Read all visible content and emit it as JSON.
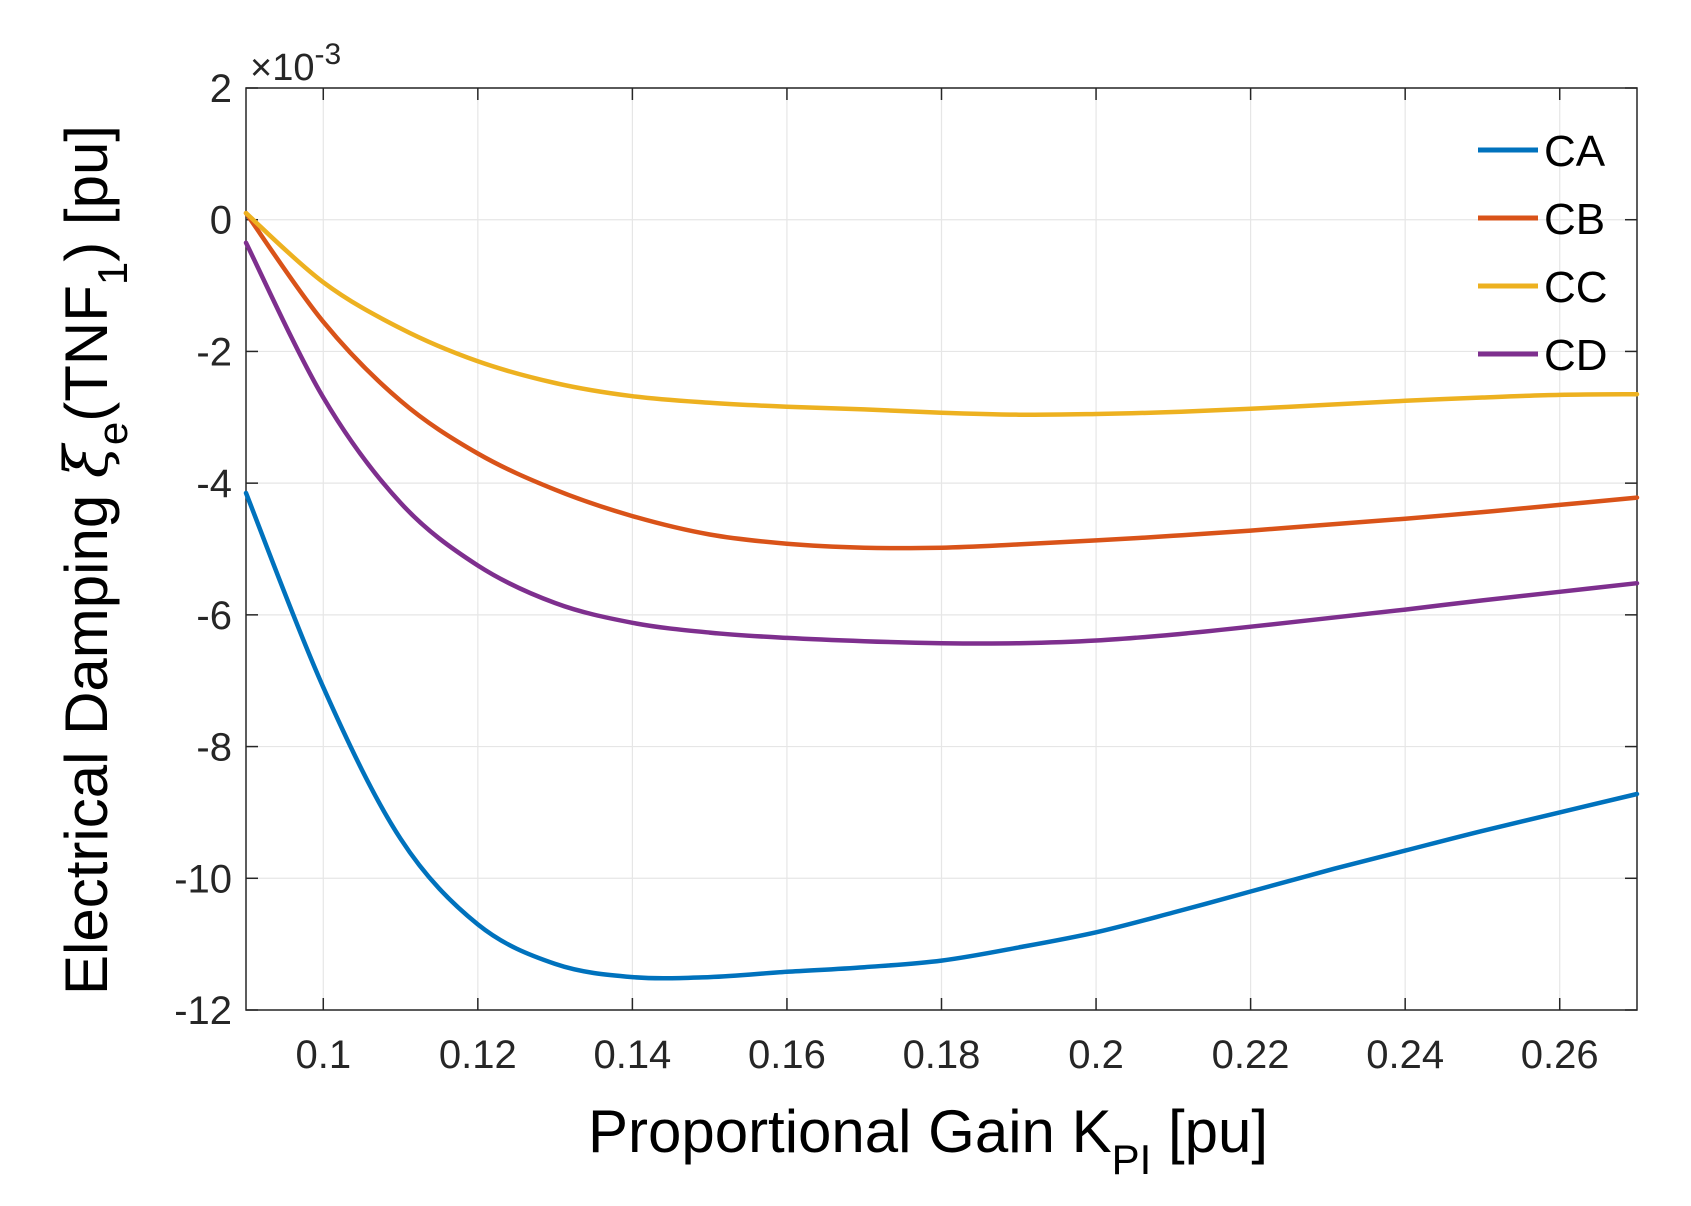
{
  "chart_data": {
    "type": "line",
    "xlabel_main": "Proportional Gain K",
    "xlabel_sub": "PI",
    "xlabel_unit": " [pu]",
    "ylabel_main": "Electrical Damping ",
    "ylabel_symbol": "ξ",
    "ylabel_sub_e": "e",
    "ylabel_paren_open": "(TNF",
    "ylabel_sub_1": "1",
    "ylabel_paren_close": ") [pu]",
    "y_exponent_base": "×10",
    "y_exponent_power": "-3",
    "xlim": [
      0.09,
      0.27
    ],
    "ylim": [
      -12,
      2
    ],
    "xticks": [
      0.1,
      0.12,
      0.14,
      0.16,
      0.18,
      0.2,
      0.22,
      0.24,
      0.26
    ],
    "xtick_labels": [
      "0.1",
      "0.12",
      "0.14",
      "0.16",
      "0.18",
      "0.2",
      "0.22",
      "0.24",
      "0.26"
    ],
    "yticks": [
      2,
      0,
      -2,
      -4,
      -6,
      -8,
      -10,
      -12
    ],
    "ytick_labels": [
      "2",
      "0",
      "-2",
      "-4",
      "-6",
      "-8",
      "-10",
      "-12"
    ],
    "grid": true,
    "legend_position": "top-right",
    "series": [
      {
        "name": "CA",
        "color": "#0072BD",
        "x": [
          0.09,
          0.1,
          0.11,
          0.12,
          0.13,
          0.14,
          0.15,
          0.16,
          0.17,
          0.18,
          0.19,
          0.2,
          0.21,
          0.22,
          0.23,
          0.24,
          0.25,
          0.26,
          0.27
        ],
        "y": [
          -4.15,
          -7.1,
          -9.4,
          -10.7,
          -11.3,
          -11.5,
          -11.5,
          -11.42,
          -11.35,
          -11.25,
          -11.05,
          -10.82,
          -10.52,
          -10.2,
          -9.88,
          -9.58,
          -9.28,
          -9.0,
          -8.72
        ]
      },
      {
        "name": "CB",
        "color": "#D95319",
        "x": [
          0.09,
          0.1,
          0.11,
          0.12,
          0.13,
          0.14,
          0.15,
          0.16,
          0.17,
          0.18,
          0.19,
          0.2,
          0.21,
          0.22,
          0.23,
          0.24,
          0.25,
          0.26,
          0.27
        ],
        "y": [
          0.1,
          -1.55,
          -2.75,
          -3.55,
          -4.1,
          -4.5,
          -4.78,
          -4.92,
          -4.98,
          -4.98,
          -4.93,
          -4.87,
          -4.8,
          -4.72,
          -4.63,
          -4.54,
          -4.44,
          -4.33,
          -4.22
        ]
      },
      {
        "name": "CC",
        "color": "#EDB120",
        "x": [
          0.09,
          0.1,
          0.11,
          0.12,
          0.13,
          0.14,
          0.15,
          0.16,
          0.17,
          0.18,
          0.19,
          0.2,
          0.21,
          0.22,
          0.23,
          0.24,
          0.25,
          0.26,
          0.27
        ],
        "y": [
          0.1,
          -0.95,
          -1.65,
          -2.15,
          -2.48,
          -2.68,
          -2.78,
          -2.84,
          -2.88,
          -2.93,
          -2.96,
          -2.95,
          -2.92,
          -2.87,
          -2.81,
          -2.75,
          -2.7,
          -2.66,
          -2.65
        ]
      },
      {
        "name": "CD",
        "color": "#7E2F8E",
        "x": [
          0.09,
          0.1,
          0.11,
          0.12,
          0.13,
          0.14,
          0.15,
          0.16,
          0.17,
          0.18,
          0.19,
          0.2,
          0.21,
          0.22,
          0.23,
          0.24,
          0.25,
          0.26,
          0.27
        ],
        "y": [
          -0.35,
          -2.7,
          -4.3,
          -5.25,
          -5.82,
          -6.12,
          -6.27,
          -6.35,
          -6.4,
          -6.43,
          -6.43,
          -6.39,
          -6.3,
          -6.18,
          -6.05,
          -5.92,
          -5.78,
          -5.65,
          -5.52
        ]
      }
    ]
  }
}
